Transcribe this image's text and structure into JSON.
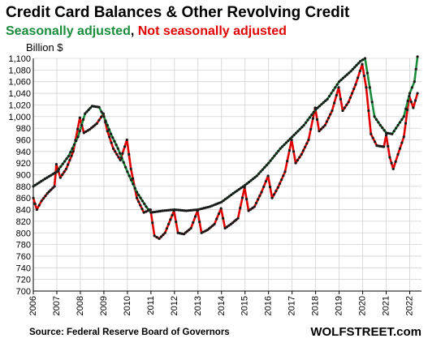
{
  "chart_data": {
    "type": "line",
    "title": "Credit Card Balances & Other Revolving Credit",
    "subtitle_parts": [
      {
        "text": "Seasonally adjusted",
        "role": "sa"
      },
      {
        "text": ", ",
        "role": "sep"
      },
      {
        "text": "Not seasonally adjusted",
        "role": "nsa"
      }
    ],
    "ylabel": "Billion $",
    "ylim": [
      700,
      1100
    ],
    "y_step": 20,
    "xlim": [
      2006,
      2022.5
    ],
    "x_ticks": [
      2006,
      2007,
      2008,
      2009,
      2010,
      2011,
      2012,
      2013,
      2014,
      2015,
      2016,
      2017,
      2018,
      2019,
      2020,
      2021,
      2022
    ],
    "grid": true,
    "source": "Source: Federal Reserve Board of Governors",
    "brand": "WOLFSTREET.com",
    "colors": {
      "sa": "#1a8c3c",
      "nsa": "#e00000",
      "marker": "#1a1a1a",
      "grid": "#d0d0d0"
    },
    "series": [
      {
        "name": "Seasonally adjusted",
        "role": "sa",
        "points": [
          [
            2006.0,
            880
          ],
          [
            2006.5,
            893
          ],
          [
            2007.0,
            905
          ],
          [
            2007.5,
            932
          ],
          [
            2007.9,
            965
          ],
          [
            2008.2,
            1005
          ],
          [
            2008.5,
            1018
          ],
          [
            2008.8,
            1016
          ],
          [
            2009.0,
            1000
          ],
          [
            2009.3,
            970
          ],
          [
            2009.6,
            945
          ],
          [
            2010.0,
            905
          ],
          [
            2010.4,
            870
          ],
          [
            2010.8,
            845
          ],
          [
            2011.0,
            835
          ],
          [
            2011.5,
            838
          ],
          [
            2012.0,
            840
          ],
          [
            2012.5,
            838
          ],
          [
            2013.0,
            840
          ],
          [
            2013.5,
            845
          ],
          [
            2014.0,
            853
          ],
          [
            2014.5,
            868
          ],
          [
            2015.0,
            882
          ],
          [
            2015.5,
            898
          ],
          [
            2016.0,
            920
          ],
          [
            2016.5,
            945
          ],
          [
            2017.0,
            965
          ],
          [
            2017.5,
            985
          ],
          [
            2018.0,
            1012
          ],
          [
            2018.5,
            1030
          ],
          [
            2019.0,
            1060
          ],
          [
            2019.5,
            1078
          ],
          [
            2019.9,
            1095
          ],
          [
            2020.1,
            1100
          ],
          [
            2020.3,
            1050
          ],
          [
            2020.5,
            1000
          ],
          [
            2020.75,
            985
          ],
          [
            2021.0,
            972
          ],
          [
            2021.25,
            970
          ],
          [
            2021.5,
            985
          ],
          [
            2021.75,
            1000
          ],
          [
            2022.0,
            1040
          ],
          [
            2022.2,
            1060
          ],
          [
            2022.33,
            1103
          ]
        ]
      },
      {
        "name": "Not seasonally adjusted",
        "role": "nsa",
        "points": [
          [
            2006.0,
            860
          ],
          [
            2006.15,
            840
          ],
          [
            2006.35,
            855
          ],
          [
            2006.6,
            868
          ],
          [
            2006.9,
            880
          ],
          [
            2006.98,
            918
          ],
          [
            2007.15,
            895
          ],
          [
            2007.4,
            910
          ],
          [
            2007.7,
            940
          ],
          [
            2007.98,
            998
          ],
          [
            2008.15,
            972
          ],
          [
            2008.4,
            978
          ],
          [
            2008.7,
            988
          ],
          [
            2008.98,
            1005
          ],
          [
            2009.15,
            975
          ],
          [
            2009.4,
            945
          ],
          [
            2009.7,
            925
          ],
          [
            2009.98,
            960
          ],
          [
            2010.15,
            910
          ],
          [
            2010.4,
            860
          ],
          [
            2010.7,
            835
          ],
          [
            2010.98,
            840
          ],
          [
            2011.15,
            795
          ],
          [
            2011.35,
            790
          ],
          [
            2011.6,
            800
          ],
          [
            2011.98,
            838
          ],
          [
            2012.15,
            800
          ],
          [
            2012.4,
            798
          ],
          [
            2012.7,
            808
          ],
          [
            2012.98,
            838
          ],
          [
            2013.15,
            800
          ],
          [
            2013.4,
            805
          ],
          [
            2013.7,
            815
          ],
          [
            2013.98,
            842
          ],
          [
            2014.15,
            808
          ],
          [
            2014.4,
            815
          ],
          [
            2014.7,
            825
          ],
          [
            2014.98,
            878
          ],
          [
            2015.15,
            838
          ],
          [
            2015.4,
            845
          ],
          [
            2015.7,
            870
          ],
          [
            2015.98,
            898
          ],
          [
            2016.15,
            860
          ],
          [
            2016.4,
            878
          ],
          [
            2016.7,
            905
          ],
          [
            2016.98,
            960
          ],
          [
            2017.15,
            920
          ],
          [
            2017.4,
            935
          ],
          [
            2017.7,
            960
          ],
          [
            2017.98,
            1015
          ],
          [
            2018.15,
            975
          ],
          [
            2018.4,
            985
          ],
          [
            2018.7,
            1010
          ],
          [
            2018.98,
            1050
          ],
          [
            2019.15,
            1010
          ],
          [
            2019.4,
            1025
          ],
          [
            2019.7,
            1055
          ],
          [
            2019.98,
            1090
          ],
          [
            2020.15,
            1050
          ],
          [
            2020.35,
            970
          ],
          [
            2020.6,
            950
          ],
          [
            2020.9,
            948
          ],
          [
            2021.0,
            968
          ],
          [
            2021.15,
            930
          ],
          [
            2021.3,
            910
          ],
          [
            2021.5,
            935
          ],
          [
            2021.75,
            965
          ],
          [
            2021.98,
            1035
          ],
          [
            2022.15,
            1015
          ],
          [
            2022.33,
            1040
          ]
        ]
      }
    ]
  }
}
